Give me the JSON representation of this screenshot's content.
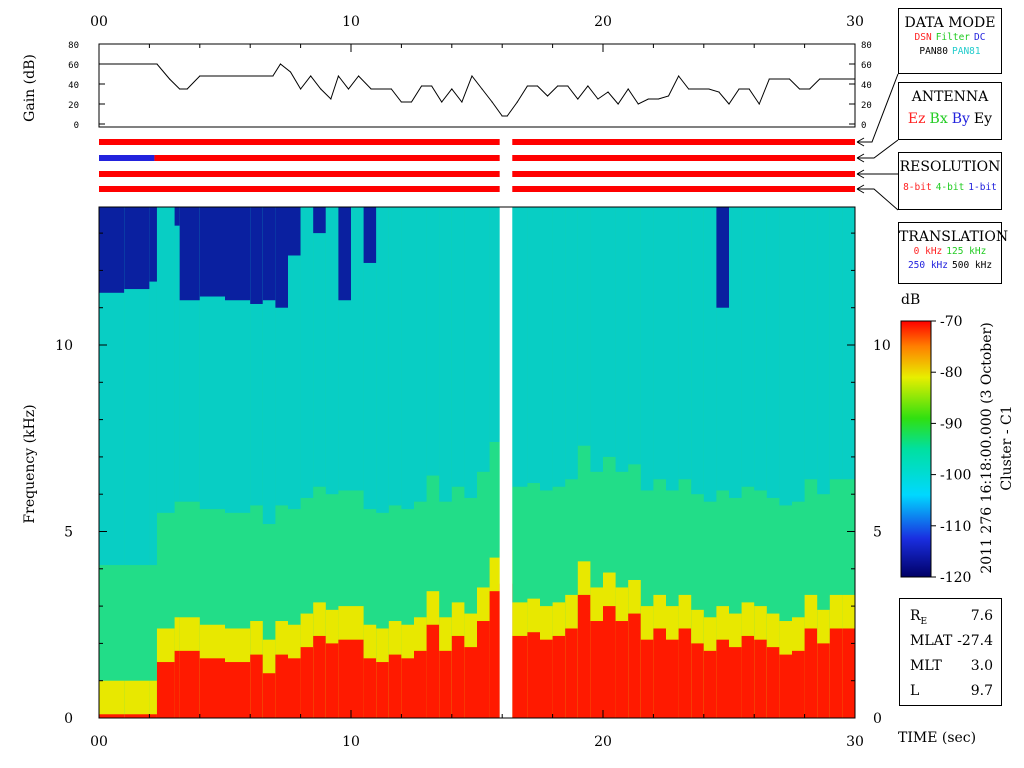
{
  "chart_data": [
    {
      "type": "line",
      "panel": "gain",
      "ylabel": "Gain (dB)",
      "xlim": [
        0,
        30
      ],
      "ylim": [
        0,
        80
      ],
      "yticks": [
        "0",
        "20",
        "40",
        "60",
        "80"
      ],
      "xticks": [
        "00",
        "10",
        "20",
        "30"
      ],
      "x": [
        0,
        2.3,
        2.8,
        3.2,
        3.5,
        4.0,
        5.5,
        6.9,
        7.2,
        7.6,
        8.0,
        8.4,
        8.8,
        9.2,
        9.5,
        9.9,
        10.3,
        10.8,
        11.2,
        11.6,
        12.0,
        12.4,
        12.8,
        13.2,
        13.6,
        14.0,
        14.4,
        14.8,
        15.2,
        15.6,
        16.0,
        16.2,
        16.6,
        17.0,
        17.4,
        17.8,
        18.2,
        18.6,
        19.0,
        19.4,
        19.8,
        20.2,
        20.6,
        21.0,
        21.4,
        21.8,
        22.2,
        22.6,
        23.0,
        23.4,
        23.8,
        24.2,
        24.6,
        25.0,
        25.4,
        25.8,
        26.2,
        26.6,
        27.0,
        27.4,
        27.8,
        28.2,
        28.6,
        29.0,
        29.4,
        30.0
      ],
      "y": [
        60,
        60,
        45,
        35,
        35,
        48,
        48,
        48,
        60,
        52,
        35,
        48,
        35,
        25,
        48,
        35,
        48,
        35,
        35,
        35,
        22,
        22,
        38,
        38,
        22,
        35,
        22,
        48,
        35,
        22,
        8,
        8,
        22,
        38,
        38,
        28,
        38,
        38,
        25,
        38,
        25,
        32,
        20,
        35,
        20,
        25,
        25,
        28,
        48,
        35,
        35,
        35,
        32,
        20,
        35,
        35,
        20,
        45,
        45,
        45,
        35,
        35,
        45,
        45,
        45,
        45
      ]
    },
    {
      "type": "table",
      "panel": "mode-bars",
      "rows": [
        {
          "legend": "DATA MODE",
          "segments": [
            {
              "from": 0,
              "to": 15.9,
              "color": "#ff0000"
            },
            {
              "from": 16.4,
              "to": 30,
              "color": "#ff0000"
            }
          ]
        },
        {
          "legend": "ANTENNA",
          "segments": [
            {
              "from": 0,
              "to": 2.2,
              "color": "#2222dd"
            },
            {
              "from": 2.2,
              "to": 15.9,
              "color": "#ff0000"
            },
            {
              "from": 16.4,
              "to": 30,
              "color": "#ff0000"
            }
          ]
        },
        {
          "legend": "RESOLUTION",
          "segments": [
            {
              "from": 0,
              "to": 15.9,
              "color": "#ff0000"
            },
            {
              "from": 16.4,
              "to": 30,
              "color": "#ff0000"
            }
          ]
        },
        {
          "legend": "TRANSLATION",
          "segments": [
            {
              "from": 0,
              "to": 15.9,
              "color": "#ff0000"
            },
            {
              "from": 16.4,
              "to": 30,
              "color": "#ff0000"
            }
          ]
        }
      ]
    },
    {
      "type": "heatmap",
      "panel": "spectrogram",
      "xlabel": "TIME (sec)",
      "ylabel": "Frequency (kHz)",
      "xlim": [
        0,
        30
      ],
      "ylim": [
        0,
        13.7
      ],
      "xticks": [
        "00",
        "10",
        "20",
        "30"
      ],
      "yticks": [
        "0",
        "5",
        "10"
      ],
      "data_gap": [
        15.9,
        16.4
      ],
      "colorbar": {
        "label": "dB",
        "min": -120,
        "max": -70,
        "ticks": [
          "-70",
          "-80",
          "-90",
          "-100",
          "-110",
          "-120"
        ]
      },
      "x": [
        0,
        1,
        2,
        2.3,
        3,
        3.2,
        4,
        5,
        6,
        6.5,
        7,
        7.5,
        8,
        8.5,
        9,
        9.5,
        10,
        10.5,
        11,
        11.5,
        12,
        12.5,
        13,
        13.5,
        14,
        14.5,
        15,
        15.5,
        15.9,
        16.4,
        17,
        17.5,
        18,
        18.5,
        19,
        19.5,
        20,
        20.5,
        21,
        21.5,
        22,
        22.5,
        23,
        23.5,
        24,
        24.5,
        25,
        25.5,
        26,
        26.5,
        27,
        27.5,
        28,
        28.5,
        29,
        29.5,
        30
      ],
      "lower_hiss_top_khz": [
        0.1,
        0.1,
        0.1,
        1.5,
        1.8,
        1.8,
        1.6,
        1.5,
        1.7,
        1.2,
        1.7,
        1.6,
        1.9,
        2.2,
        2.0,
        2.1,
        2.1,
        1.6,
        1.5,
        1.7,
        1.6,
        1.8,
        2.5,
        1.8,
        2.2,
        1.9,
        2.6,
        3.4,
        3.6,
        2.2,
        2.3,
        2.1,
        2.2,
        2.4,
        3.3,
        2.6,
        3.0,
        2.6,
        2.8,
        2.1,
        2.4,
        2.1,
        2.4,
        2.0,
        1.8,
        2.1,
        1.9,
        2.2,
        2.1,
        1.9,
        1.7,
        1.8,
        2.4,
        2.0,
        2.4,
        2.4,
        2.3
      ],
      "upper_quiet_bottom_khz": [
        11.4,
        11.5,
        11.7,
        13.7,
        13.2,
        11.2,
        11.3,
        11.2,
        11.1,
        11.2,
        11.0,
        12.4,
        13.7,
        13.0,
        13.7,
        11.2,
        13.7,
        12.2,
        13.7,
        13.7,
        13.7,
        13.7,
        13.7,
        13.7,
        13.7,
        13.7,
        13.7,
        13.7,
        13.7,
        13.7,
        13.7,
        13.7,
        13.7,
        13.7,
        13.7,
        13.7,
        13.7,
        13.7,
        13.7,
        13.7,
        13.7,
        13.7,
        13.7,
        13.7,
        13.7,
        11.0,
        13.7,
        13.7,
        13.7,
        13.7,
        13.7,
        13.7,
        13.7,
        13.7,
        13.7,
        13.7,
        13.7
      ]
    }
  ],
  "legends": {
    "data_mode": {
      "title": "DATA MODE",
      "row1": [
        {
          "text": "DSN",
          "color": "#ff2222"
        },
        {
          "text": "Filter",
          "color": "#22cc22"
        },
        {
          "text": "DC",
          "color": "#2222dd"
        }
      ],
      "row2": [
        {
          "text": "PAN80",
          "color": "#000000"
        },
        {
          "text": "PAN81",
          "color": "#22cccc"
        }
      ]
    },
    "antenna": {
      "title": "ANTENNA",
      "row1": [
        {
          "text": "Ez",
          "color": "#ff2222"
        },
        {
          "text": "Bx",
          "color": "#22cc22"
        },
        {
          "text": "By",
          "color": "#2222dd"
        },
        {
          "text": "Ey",
          "color": "#000000"
        }
      ]
    },
    "resolution": {
      "title": "RESOLUTION",
      "row1": [
        {
          "text": "8-bit",
          "color": "#ff2222"
        },
        {
          "text": "4-bit",
          "color": "#22cc22"
        },
        {
          "text": "1-bit",
          "color": "#2222dd"
        }
      ]
    },
    "translation": {
      "title": "TRANSLATION",
      "row1": [
        {
          "text": "0 kHz",
          "color": "#ff2222"
        },
        {
          "text": "125 kHz",
          "color": "#22cc22"
        }
      ],
      "row2": [
        {
          "text": "250 kHz",
          "color": "#2222dd"
        },
        {
          "text": "500 kHz",
          "color": "#000000"
        }
      ]
    }
  },
  "side_label": {
    "line1": "2011 276 16:18:00.000 (3 October)",
    "line2": "Cluster - C1"
  },
  "orbit_info": [
    {
      "name": "R",
      "sub": "E",
      "value": "7.6"
    },
    {
      "name": "MLAT",
      "sub": "",
      "value": "-27.4"
    },
    {
      "name": "MLT",
      "sub": "",
      "value": "3.0"
    },
    {
      "name": "L",
      "sub": "",
      "value": "9.7"
    }
  ]
}
